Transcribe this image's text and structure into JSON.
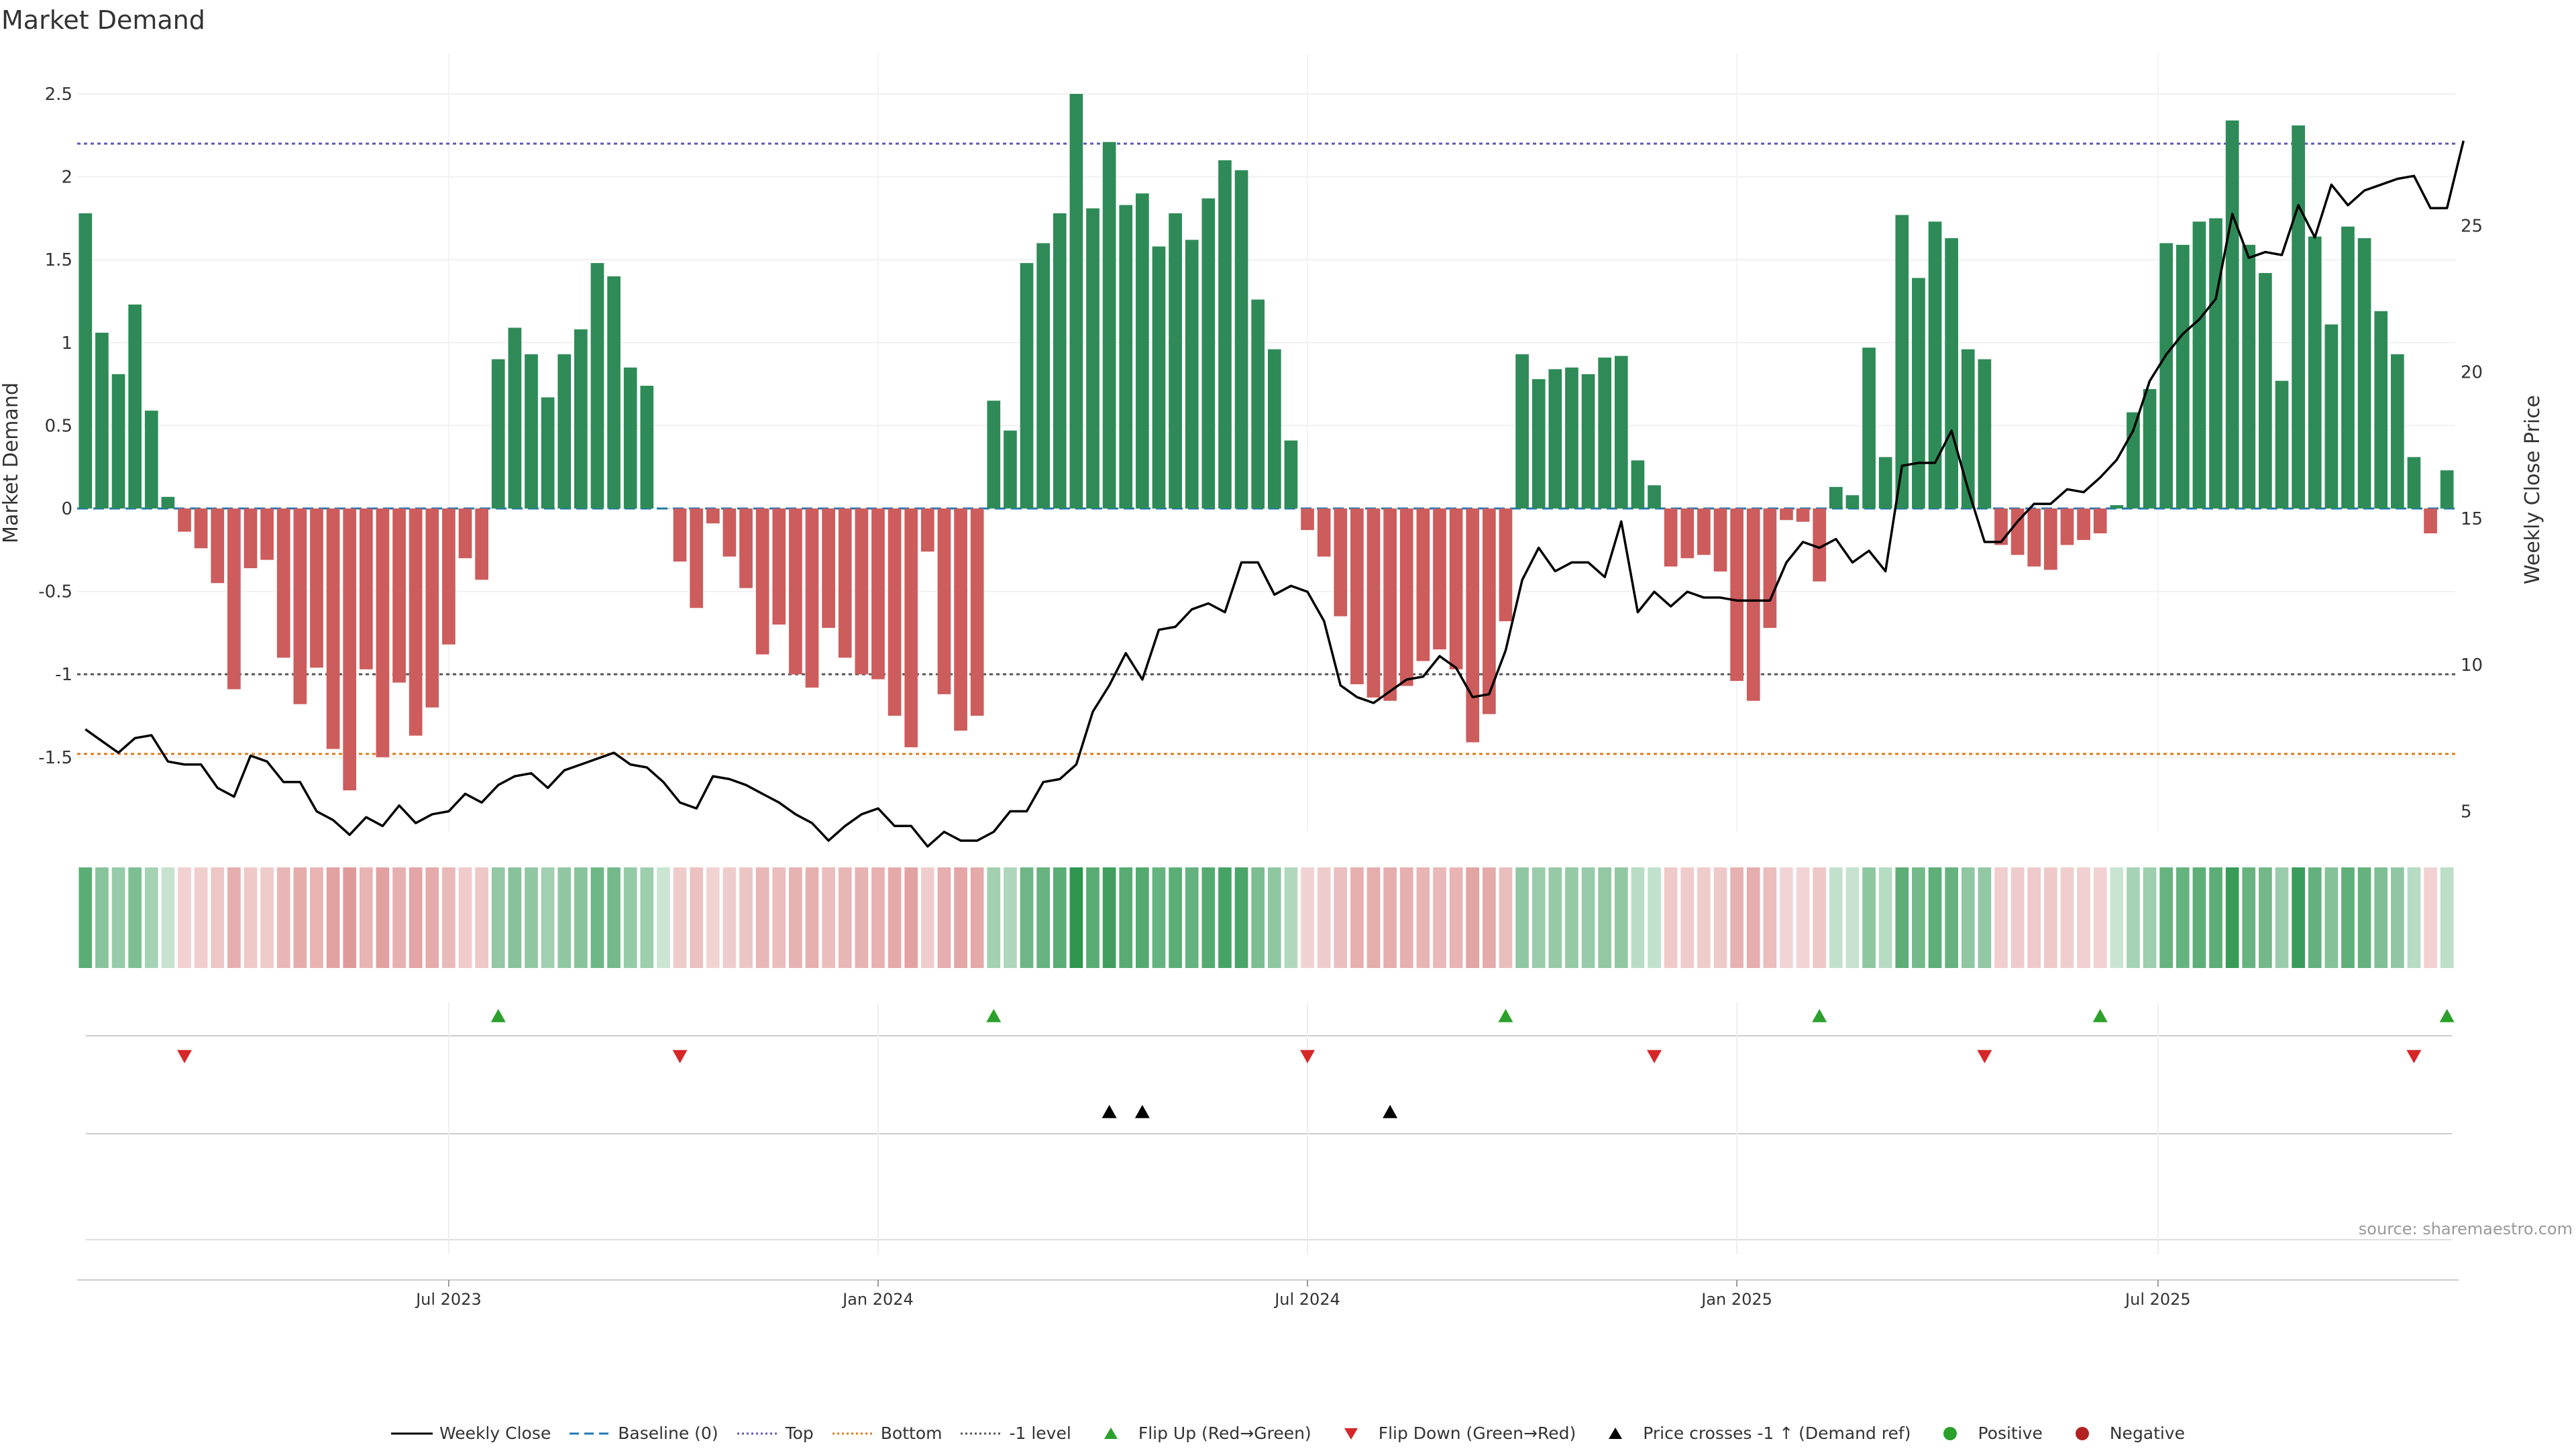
{
  "title": "Market Demand",
  "source": "source: sharemaestro.com",
  "colors": {
    "positive": "#2e8b57",
    "negative": "#cd5c5c",
    "price": "#000000",
    "baseline": "#1f77b4",
    "top": "#5b5bb5",
    "bottom": "#e07b1a",
    "minus1": "#555555",
    "flip_up": "#2ca02c",
    "flip_down": "#d62728",
    "cross": "#000000"
  },
  "legend": [
    {
      "label": "Weekly Close",
      "icon": "solid-line"
    },
    {
      "label": "Baseline (0)",
      "icon": "dashed-line"
    },
    {
      "label": "Top",
      "icon": "dotted-line"
    },
    {
      "label": "Bottom",
      "icon": "dotted-line"
    },
    {
      "label": "-1 level",
      "icon": "dotted-line"
    },
    {
      "label": "Flip Up (Red→Green)",
      "icon": "triangle-up"
    },
    {
      "label": "Flip Down (Green→Red)",
      "icon": "triangle-down"
    },
    {
      "label": "Price crosses -1 ↑ (Demand ref)",
      "icon": "triangle-up"
    },
    {
      "label": "Positive",
      "icon": "dot"
    },
    {
      "label": "Negative",
      "icon": "dot"
    }
  ],
  "chart_data": {
    "type": "bar",
    "ylabel": "Market Demand",
    "y2label": "Weekly Close Price",
    "ylim": [
      -1.95,
      2.5
    ],
    "yticks": [
      2.5,
      2,
      1.5,
      1,
      0.5,
      0,
      -0.5,
      -1,
      -1.5
    ],
    "ytick_labels": [
      "2.5",
      "2",
      "1.5",
      "1",
      "0.5",
      "0",
      "-0.5",
      "-1",
      "-1.5"
    ],
    "y2lim": [
      4.3,
      29.5
    ],
    "y2ticks": [
      25,
      20,
      15,
      10,
      5
    ],
    "y2tick_labels": [
      "25",
      "20",
      "15",
      "10",
      "5"
    ],
    "x_tick_labels": [
      "Jul 2023",
      "Jan 2024",
      "Jul 2024",
      "Jan 2025",
      "Jul 2025"
    ],
    "x_tick_weeks": [
      22,
      48,
      74,
      100,
      125.5
    ],
    "reference_lines": {
      "top": 2.2,
      "bottom": -1.48,
      "minus_one": -1.0,
      "baseline": 0
    },
    "demand": [
      1.78,
      1.06,
      0.81,
      1.23,
      0.59,
      0.07,
      -0.14,
      -0.24,
      -0.45,
      -1.09,
      -0.36,
      -0.31,
      -0.9,
      -1.18,
      -0.96,
      -1.45,
      -1.7,
      -0.97,
      -1.5,
      -1.05,
      -1.37,
      -1.2,
      -0.82,
      -0.3,
      -0.43,
      0.9,
      1.09,
      0.93,
      0.67,
      0.93,
      1.08,
      1.48,
      1.4,
      0.85,
      0.74,
      0.0,
      -0.32,
      -0.6,
      -0.09,
      -0.29,
      -0.48,
      -0.88,
      -0.7,
      -1.0,
      -1.08,
      -0.72,
      -0.9,
      -1.0,
      -1.03,
      -1.25,
      -1.44,
      -0.26,
      -1.12,
      -1.34,
      -1.25,
      0.65,
      0.47,
      1.48,
      1.6,
      1.78,
      2.5,
      1.81,
      2.21,
      1.83,
      1.9,
      1.58,
      1.78,
      1.62,
      1.87,
      2.1,
      2.04,
      1.26,
      0.96,
      0.41,
      -0.13,
      -0.29,
      -0.65,
      -1.06,
      -1.14,
      -1.16,
      -1.07,
      -0.92,
      -0.85,
      -0.97,
      -1.41,
      -1.24,
      -0.68,
      0.93,
      0.78,
      0.84,
      0.85,
      0.81,
      0.91,
      0.92,
      0.29,
      0.14,
      -0.35,
      -0.3,
      -0.28,
      -0.38,
      -1.04,
      -1.16,
      -0.72,
      -0.07,
      -0.08,
      -0.44,
      0.13,
      0.08,
      0.97,
      0.31,
      1.77,
      1.39,
      1.73,
      1.63,
      0.96,
      0.9,
      -0.22,
      -0.28,
      -0.35,
      -0.37,
      -0.22,
      -0.19,
      -0.15,
      0.02,
      0.58,
      0.72,
      1.6,
      1.59,
      1.73,
      1.75,
      2.34,
      1.59,
      1.42,
      0.77,
      2.31,
      1.64,
      1.11,
      1.7,
      1.63,
      1.19,
      0.93,
      0.31,
      -0.15,
      0.23
    ],
    "weekly_close": [
      7.8,
      7.4,
      7.0,
      7.5,
      7.6,
      6.7,
      6.6,
      6.6,
      5.8,
      5.5,
      6.9,
      6.7,
      6.0,
      6.0,
      5.0,
      4.7,
      4.2,
      4.8,
      4.5,
      5.2,
      4.6,
      4.9,
      5.0,
      5.6,
      5.3,
      5.9,
      6.2,
      6.3,
      5.8,
      6.4,
      6.6,
      6.8,
      7.0,
      6.6,
      6.5,
      6.0,
      5.3,
      5.1,
      6.2,
      6.1,
      5.9,
      5.6,
      5.3,
      4.9,
      4.6,
      4.0,
      4.5,
      4.9,
      5.1,
      4.5,
      4.5,
      3.8,
      4.3,
      4.0,
      4.0,
      4.3,
      5.0,
      5.0,
      6.0,
      6.1,
      6.6,
      8.4,
      9.3,
      10.4,
      9.5,
      11.2,
      11.3,
      11.9,
      12.1,
      11.8,
      13.5,
      13.5,
      12.4,
      12.7,
      12.5,
      11.5,
      9.3,
      8.9,
      8.7,
      9.1,
      9.5,
      9.6,
      10.3,
      9.9,
      8.9,
      9.0,
      10.5,
      12.9,
      14.0,
      13.2,
      13.5,
      13.5,
      13.0,
      14.9,
      11.8,
      12.5,
      12.0,
      12.5,
      12.3,
      12.3,
      12.2,
      12.2,
      12.2,
      13.5,
      14.2,
      14.0,
      14.3,
      13.5,
      13.9,
      13.2,
      16.8,
      16.9,
      16.9,
      18.0,
      16.0,
      14.2,
      14.2,
      14.9,
      15.5,
      15.5,
      16.0,
      15.9,
      16.4,
      17.0,
      18.0,
      19.7,
      20.6,
      21.3,
      21.8,
      22.5,
      25.4,
      23.9,
      24.1,
      24.0,
      25.7,
      24.6,
      26.4,
      25.7,
      26.2,
      26.4,
      26.6,
      26.7,
      25.6,
      25.6,
      27.9
    ],
    "heat_strip": "signed demand intensity per week (green = positive, red = negative)",
    "flip_up_weeks": [
      25,
      55,
      86,
      105,
      122,
      143
    ],
    "flip_down_weeks": [
      6,
      36,
      74,
      95,
      115,
      141
    ],
    "cross_up_weeks": [
      62,
      64,
      79
    ]
  }
}
